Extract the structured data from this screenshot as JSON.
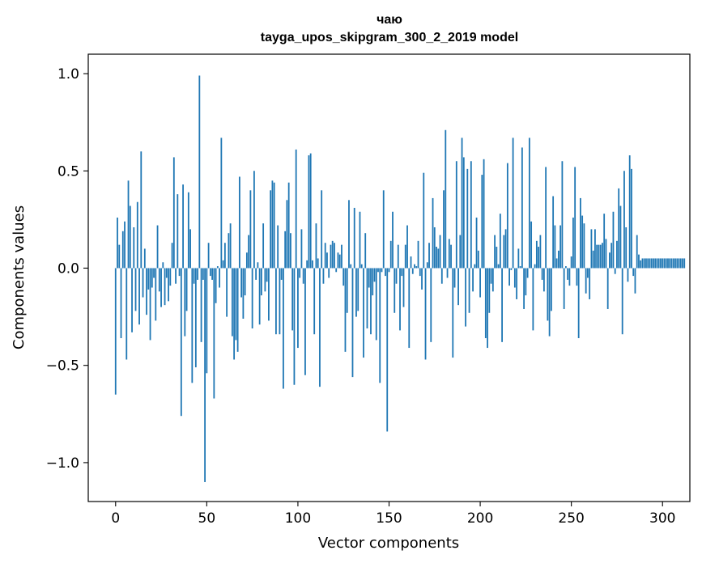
{
  "chart_data": {
    "type": "bar",
    "title_line1": "чаю",
    "title_line2": "tayga_upos_skipgram_300_2_2019 model",
    "xlabel": "Vector components",
    "ylabel": "Components values",
    "xlim": [
      -15,
      315
    ],
    "ylim": [
      -1.2,
      1.1
    ],
    "xticks": [
      0,
      50,
      100,
      150,
      200,
      250,
      300
    ],
    "xtick_labels": [
      "0",
      "50",
      "100",
      "150",
      "200",
      "250",
      "300"
    ],
    "yticks": [
      -1.0,
      -0.5,
      0.0,
      0.5,
      1.0
    ],
    "ytick_labels": [
      "−1.0",
      "−0.5",
      "0.0",
      "0.5",
      "1.0"
    ],
    "bar_color": "#1f77b4",
    "values": [
      -0.65,
      0.26,
      0.12,
      -0.36,
      0.19,
      0.24,
      -0.47,
      0.45,
      0.32,
      -0.33,
      0.21,
      -0.22,
      0.34,
      -0.29,
      0.6,
      -0.15,
      0.1,
      -0.24,
      -0.11,
      -0.37,
      -0.1,
      -0.05,
      -0.27,
      0.22,
      -0.12,
      -0.2,
      0.03,
      -0.19,
      -0.05,
      -0.17,
      -0.09,
      0.13,
      0.57,
      -0.08,
      0.38,
      -0.04,
      -0.76,
      0.43,
      -0.35,
      -0.22,
      0.39,
      0.2,
      -0.59,
      -0.08,
      -0.51,
      -0.06,
      0.99,
      -0.38,
      -0.06,
      -1.1,
      -0.54,
      0.13,
      -0.04,
      -0.06,
      -0.67,
      -0.18,
      0.01,
      -0.1,
      0.67,
      0.04,
      0.13,
      -0.25,
      0.18,
      0.23,
      -0.35,
      -0.47,
      -0.37,
      -0.43,
      0.47,
      -0.15,
      -0.26,
      -0.14,
      0.08,
      0.17,
      0.4,
      -0.31,
      0.5,
      -0.06,
      0.03,
      -0.29,
      -0.14,
      0.23,
      -0.12,
      -0.07,
      -0.27,
      0.4,
      0.45,
      0.44,
      -0.34,
      0.22,
      -0.34,
      -0.06,
      -0.62,
      0.19,
      0.35,
      0.44,
      0.18,
      -0.32,
      -0.6,
      0.61,
      -0.41,
      -0.05,
      0.2,
      -0.08,
      -0.55,
      0.04,
      0.58,
      0.59,
      0.04,
      -0.34,
      0.23,
      0.05,
      -0.61,
      0.4,
      -0.08,
      0.13,
      0.08,
      -0.05,
      0.12,
      0.14,
      0.13,
      -0.02,
      0.08,
      0.07,
      0.12,
      -0.09,
      -0.43,
      -0.23,
      0.35,
      0.02,
      -0.56,
      0.31,
      -0.25,
      -0.22,
      0.29,
      0.02,
      -0.46,
      0.18,
      -0.31,
      -0.1,
      -0.34,
      -0.14,
      -0.07,
      -0.37,
      -0.02,
      -0.59,
      -0.02,
      0.4,
      -0.04,
      -0.84,
      -0.02,
      0.14,
      0.29,
      -0.23,
      -0.08,
      0.12,
      -0.32,
      -0.04,
      -0.2,
      0.12,
      0.22,
      -0.41,
      0.06,
      -0.03,
      0.02,
      0.01,
      0.14,
      -0.04,
      -0.11,
      0.49,
      -0.47,
      0.03,
      0.13,
      -0.38,
      0.36,
      0.21,
      0.11,
      0.1,
      0.17,
      -0.08,
      0.4,
      0.71,
      -0.05,
      0.15,
      0.12,
      -0.46,
      -0.1,
      0.55,
      -0.19,
      0.17,
      0.67,
      0.57,
      -0.3,
      0.51,
      -0.23,
      0.55,
      -0.12,
      0.02,
      0.26,
      0.09,
      -0.15,
      0.48,
      0.56,
      -0.36,
      -0.41,
      -0.23,
      -0.08,
      -0.12,
      0.17,
      0.11,
      0.02,
      0.28,
      -0.38,
      0.17,
      0.2,
      0.54,
      -0.09,
      -0.01,
      0.67,
      -0.1,
      -0.16,
      0.1,
      0.01,
      0.62,
      -0.21,
      -0.14,
      -0.05,
      0.67,
      0.24,
      -0.32,
      0.02,
      0.14,
      0.11,
      0.17,
      -0.06,
      -0.12,
      0.52,
      -0.27,
      -0.35,
      -0.22,
      0.37,
      0.22,
      0.05,
      0.09,
      0.22,
      0.55,
      -0.21,
      0.01,
      -0.06,
      -0.09,
      0.06,
      0.26,
      0.52,
      -0.09,
      -0.36,
      0.36,
      0.27,
      0.23,
      -0.13,
      -0.05,
      -0.16,
      0.2,
      0.09,
      0.2,
      0.12,
      0.12,
      0.12,
      0.13,
      0.28,
      0.15,
      -0.21,
      0.08,
      0.13,
      0.29,
      -0.03,
      0.14,
      0.41,
      0.32,
      -0.34,
      0.5,
      0.21,
      -0.07,
      0.58,
      0.51,
      -0.04,
      -0.13,
      0.17,
      0.07,
      0.04,
      0.05,
      0.05,
      0.05,
      0.05,
      0.05,
      0.05,
      0.05,
      0.05,
      0.05,
      0.05,
      0.05,
      0.05,
      0.05,
      0.05,
      0.05,
      0.05,
      0.05,
      0.05,
      0.05,
      0.05,
      0.05,
      0.05,
      0.05,
      0.05
    ]
  }
}
